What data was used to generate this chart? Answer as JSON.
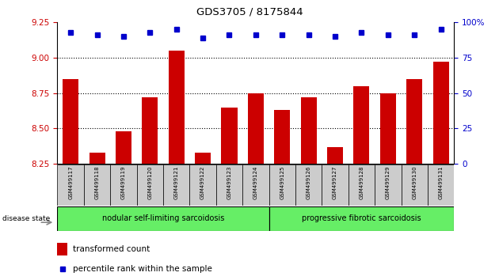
{
  "title": "GDS3705 / 8175844",
  "categories": [
    "GSM499117",
    "GSM499118",
    "GSM499119",
    "GSM499120",
    "GSM499121",
    "GSM499122",
    "GSM499123",
    "GSM499124",
    "GSM499125",
    "GSM499126",
    "GSM499127",
    "GSM499128",
    "GSM499129",
    "GSM499130",
    "GSM499131"
  ],
  "bar_values": [
    8.85,
    8.33,
    8.48,
    8.72,
    9.05,
    8.33,
    8.65,
    8.75,
    8.63,
    8.72,
    8.37,
    8.8,
    8.75,
    8.85,
    8.97
  ],
  "percentile_values": [
    93,
    91,
    90,
    93,
    95,
    89,
    91,
    91,
    91,
    91,
    90,
    93,
    91,
    91,
    95
  ],
  "bar_color": "#cc0000",
  "dot_color": "#0000cc",
  "ylim_left": [
    8.25,
    9.25
  ],
  "ylim_right": [
    0,
    100
  ],
  "yticks_left": [
    8.25,
    8.5,
    8.75,
    9.0,
    9.25
  ],
  "yticks_right": [
    0,
    25,
    50,
    75,
    100
  ],
  "ytick_labels_right": [
    "0",
    "25",
    "50",
    "75",
    "100%"
  ],
  "grid_values": [
    8.5,
    8.75,
    9.0
  ],
  "group1_label": "nodular self-limiting sarcoidosis",
  "group2_label": "progressive fibrotic sarcoidosis",
  "group1_count": 8,
  "group2_count": 7,
  "disease_state_label": "disease state",
  "legend_bar_label": "transformed count",
  "legend_dot_label": "percentile rank within the sample",
  "right_axis_color": "#0000cc",
  "bar_color_legend": "#cc0000",
  "dot_color_legend": "#0000cc",
  "tick_label_color_left": "#cc0000",
  "xticklabel_bg": "#cccccc",
  "group_bg": "#66ee66",
  "group_edge": "#000000"
}
